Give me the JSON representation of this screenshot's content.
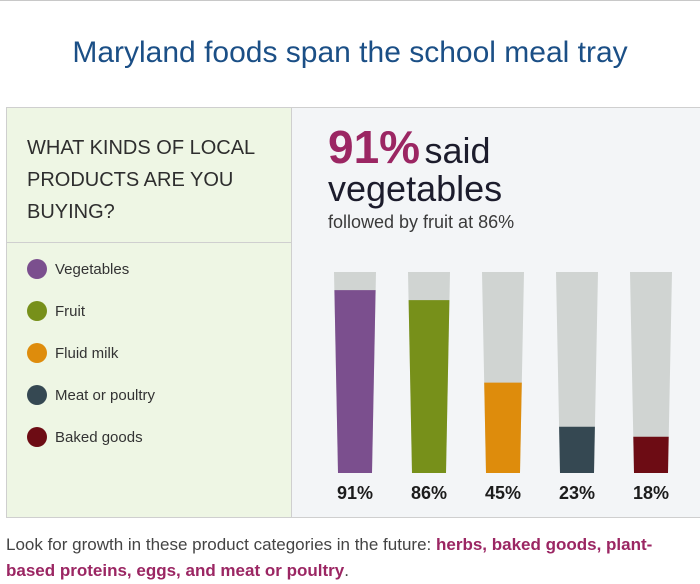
{
  "title": "Maryland foods span the school meal tray",
  "question": "WHAT KINDS OF LOCAL PRODUCTS ARE YOU BUYING?",
  "headline": {
    "pct": "91%",
    "word1": "said",
    "word2": "vegetables",
    "sub": "followed by fruit at 86%"
  },
  "footer": {
    "prefix": "Look for growth in these product categories in the future: ",
    "highlight": "herbs, baked goods, plant-based proteins, eggs, and meat or poultry",
    "suffix": "."
  },
  "colors": {
    "track": "#d0d4d2",
    "accent": "#9b2663",
    "title": "#1b4f86"
  },
  "chart_data": {
    "type": "bar",
    "categories": [
      "Vegetables",
      "Fruit",
      "Fluid milk",
      "Meat or poultry",
      "Baked goods"
    ],
    "values": [
      91,
      86,
      45,
      23,
      18
    ],
    "value_labels": [
      "91%",
      "86%",
      "45%",
      "23%",
      "18%"
    ],
    "colors": [
      "#7b4f8e",
      "#77901a",
      "#de8c0c",
      "#354852",
      "#6d0c14"
    ],
    "ylim": [
      0,
      100
    ],
    "legend_position": "left"
  }
}
